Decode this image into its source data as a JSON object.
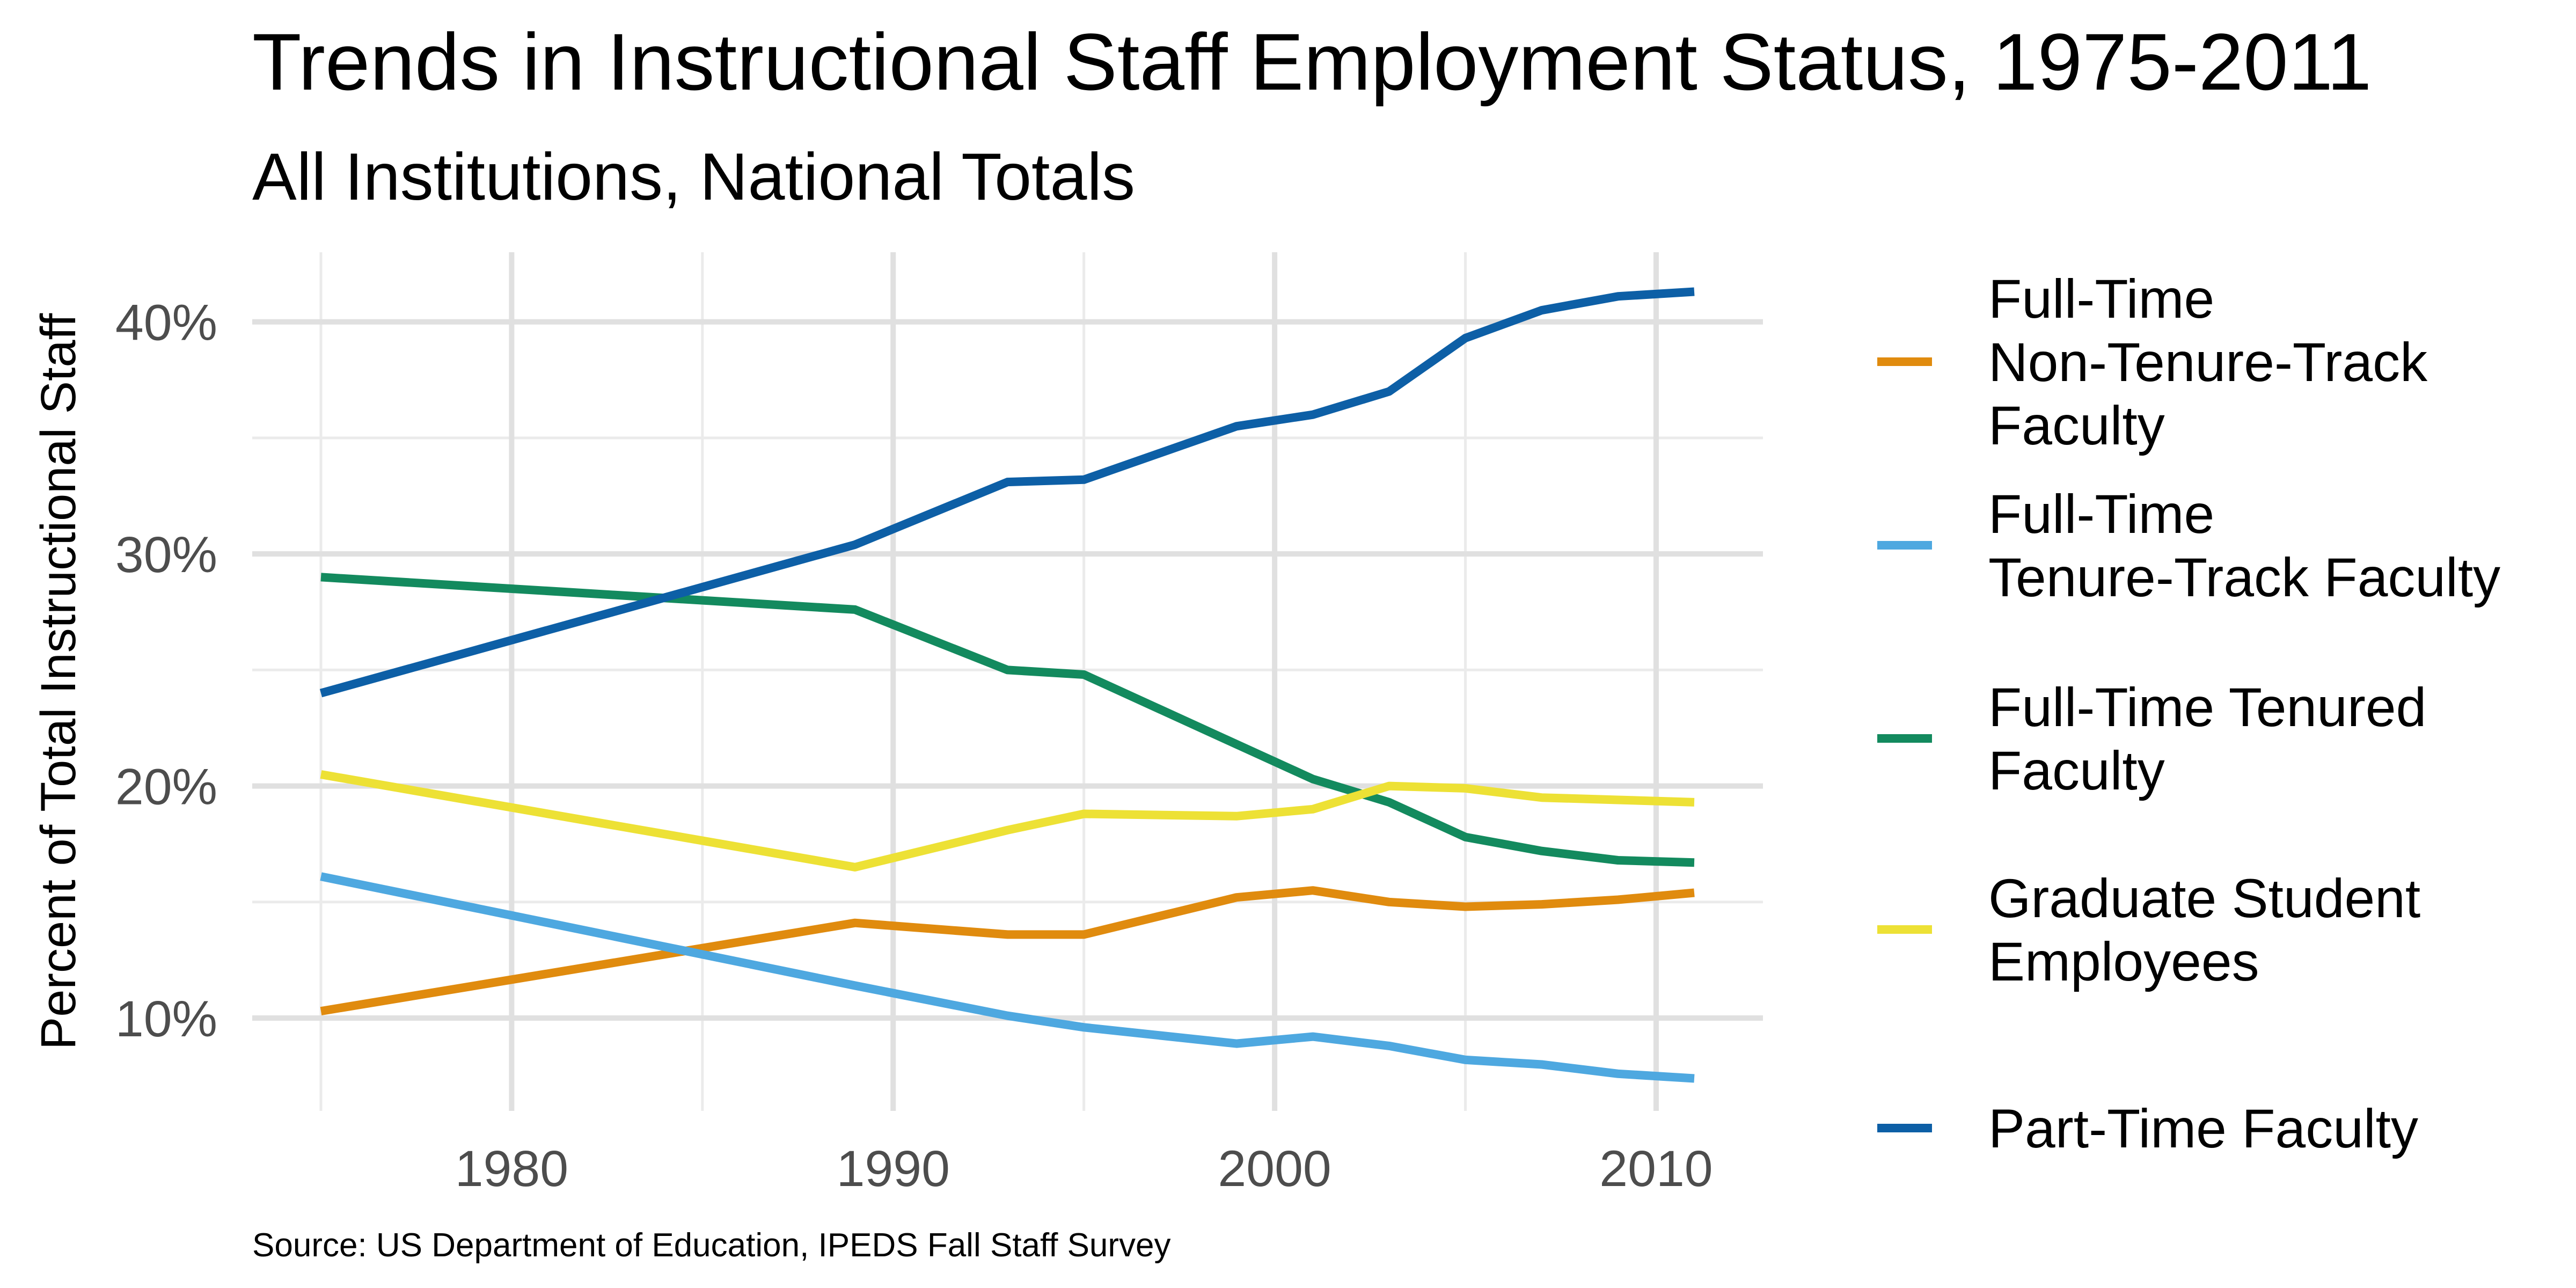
{
  "chart_data": {
    "type": "line",
    "title": "Trends in Instructional Staff Employment Status, 1975-2011",
    "subtitle": "All Institutions, National Totals",
    "ylabel": "Percent of Total Instructional Staff",
    "xlabel": "",
    "caption": "Source: US Department of Education, IPEDS Fall Staff Survey",
    "xlim": [
      1973.2,
      2012.8
    ],
    "ylim": [
      6.0,
      43.0
    ],
    "x_ticks": [
      1980,
      1990,
      2000,
      2010
    ],
    "x_tick_labels": [
      "1980",
      "1990",
      "2000",
      "2010"
    ],
    "y_ticks": [
      10,
      20,
      30,
      40
    ],
    "y_tick_labels": [
      "10%",
      "20%",
      "30%",
      "40%"
    ],
    "grid": true,
    "legend_position": "right",
    "x": [
      1975,
      1989,
      1993,
      1995,
      1999,
      2001,
      2003,
      2005,
      2007,
      2009,
      2011
    ],
    "series": [
      {
        "name": "Full-Time\nNon-Tenure-Track\nFaculty",
        "color": "#E08B0E",
        "values": [
          10.3,
          14.1,
          13.6,
          13.6,
          15.2,
          15.5,
          15.0,
          14.8,
          14.9,
          15.1,
          15.4
        ]
      },
      {
        "name": "Full-Time\nTenure-Track Faculty",
        "color": "#4EA8E0",
        "values": [
          16.1,
          11.4,
          10.1,
          9.6,
          8.9,
          9.2,
          8.8,
          8.2,
          8.0,
          7.6,
          7.4
        ]
      },
      {
        "name": "Full-Time Tenured\nFaculty",
        "color": "#138A5E",
        "values": [
          29.0,
          27.6,
          25.0,
          24.8,
          21.8,
          20.3,
          19.3,
          17.8,
          17.2,
          16.8,
          16.7
        ]
      },
      {
        "name": "Graduate Student\nEmployees",
        "color": "#EDE135",
        "values": [
          20.5,
          16.5,
          18.1,
          18.8,
          18.7,
          19.0,
          20.0,
          19.9,
          19.5,
          19.4,
          19.3
        ]
      },
      {
        "name": "Part-Time Faculty",
        "color": "#0D5FA6",
        "values": [
          24.0,
          30.4,
          33.1,
          33.2,
          35.5,
          36.0,
          37.0,
          39.3,
          40.5,
          41.1,
          41.3
        ]
      }
    ]
  }
}
